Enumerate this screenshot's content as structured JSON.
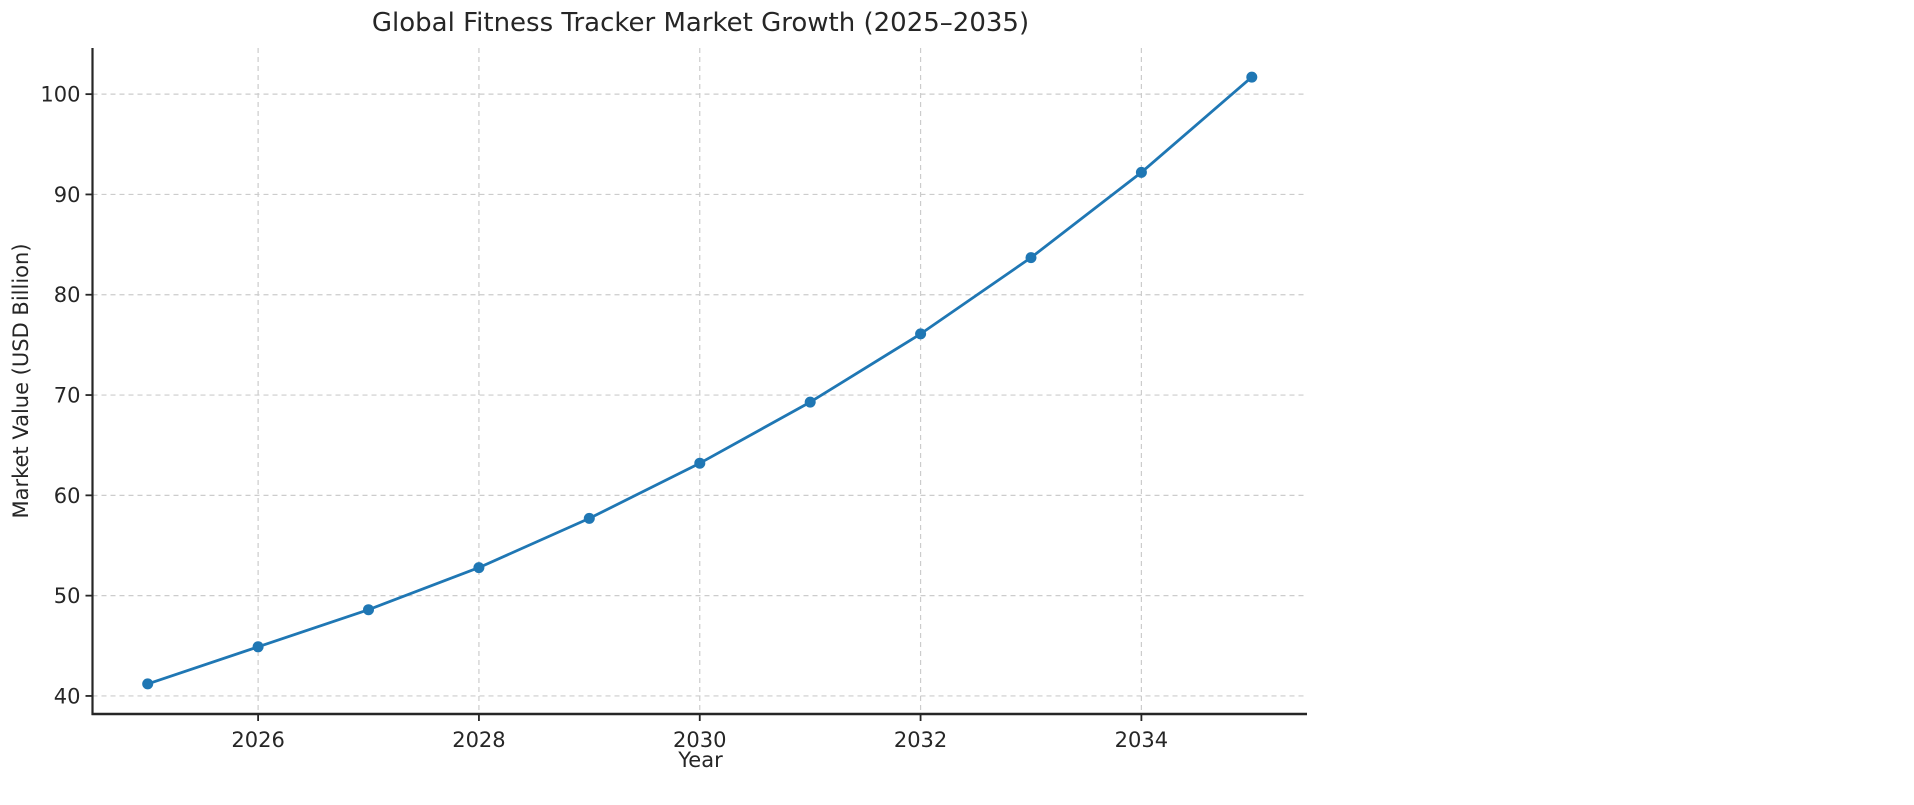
{
  "chart_data": {
    "type": "line",
    "title": "Global Fitness Tracker Market Growth (2025–2035)",
    "xlabel": "Year",
    "ylabel": "Market Value (USD Billion)",
    "x": [
      2025,
      2026,
      2027,
      2028,
      2029,
      2030,
      2031,
      2032,
      2033,
      2034,
      2035
    ],
    "series": [
      {
        "name": "Market Value",
        "values": [
          41.2,
          44.9,
          48.6,
          52.8,
          57.7,
          63.2,
          69.3,
          76.1,
          83.7,
          92.2,
          101.7
        ],
        "color": "#1f77b4",
        "marker": "circle"
      }
    ],
    "xticks": [
      2026,
      2028,
      2030,
      2032,
      2034
    ],
    "yticks": [
      40,
      50,
      60,
      70,
      80,
      90,
      100
    ],
    "xlim": [
      2024.5,
      2035.5
    ],
    "ylim": [
      38.2,
      104.6
    ],
    "grid": "dashed",
    "grid_color": "#cccccc",
    "axis_color": "#262626",
    "background_color": "#ffffff",
    "legend_position": "none"
  }
}
